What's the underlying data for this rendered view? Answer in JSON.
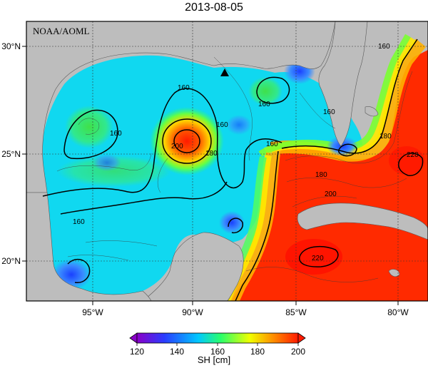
{
  "title": "2013-08-05",
  "credit": "NOAA/AOML",
  "lat_ticks": [
    "30°N",
    "25°N",
    "20°N"
  ],
  "lon_ticks": [
    "95°W",
    "90°W",
    "85°W",
    "80°W"
  ],
  "colorbar": {
    "label": "SH [cm]",
    "ticks": [
      "120",
      "140",
      "160",
      "180",
      "200"
    ],
    "range": [
      115,
      205
    ],
    "colors": [
      "#8a00c8",
      "#2a3cff",
      "#00c8ff",
      "#2aff6a",
      "#f0ff00",
      "#ff8a00",
      "#ff1a00"
    ]
  },
  "contour_labels": [
    "160",
    "160",
    "160",
    "160",
    "160",
    "160",
    "180",
    "200",
    "180",
    "180",
    "160",
    "200",
    "220",
    "220",
    "160"
  ],
  "colors": {
    "land": "#bdbdbd",
    "background": "#ffffff"
  }
}
